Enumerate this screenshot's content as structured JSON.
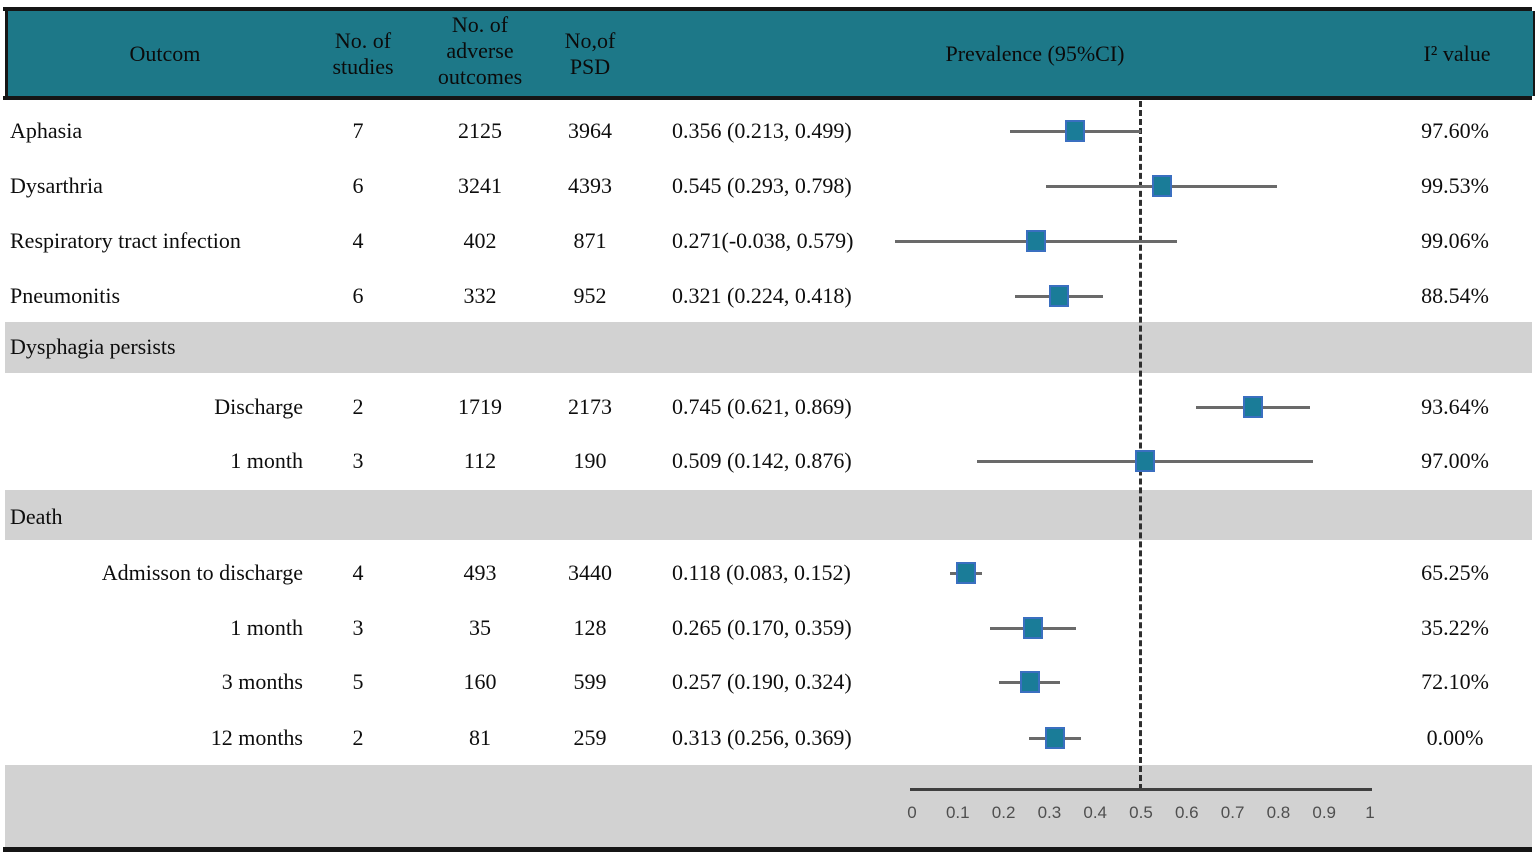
{
  "colors": {
    "header_bg": "#1d7888",
    "section_band_bg": "#d2d2d2",
    "marker_fill": "#1a7c98",
    "marker_border": "#3a6fc0",
    "ci_line": "#6a6a6a",
    "reference_line": "#2f2f2f",
    "axis_line": "#3f3f3f",
    "rule_line": "#151515"
  },
  "header": {
    "outcome": "Outcom",
    "studies": "No. of\nstudies",
    "adverse": "No. of\nadverse\noutcomes",
    "psd": "No,of\nPSD",
    "prevalence": "Prevalence  (95%CI)",
    "i2": "I² value"
  },
  "chart_data": {
    "type": "forest",
    "xlim": [
      0,
      1
    ],
    "reference_line": 0.5,
    "axis_ticks": [
      "0",
      "0.1",
      "0.2",
      "0.3",
      "0.4",
      "0.5",
      "0.6",
      "0.7",
      "0.8",
      "0.9",
      "1"
    ],
    "axis_tick_values": [
      0,
      0.1,
      0.2,
      0.3,
      0.4,
      0.5,
      0.6,
      0.7,
      0.8,
      0.9,
      1
    ],
    "legend_position": "none",
    "grid": false,
    "rows": [
      {
        "type": "data",
        "label": "Aphasia",
        "indent": false,
        "studies": "7",
        "adverse": "2125",
        "psd": "3964",
        "prevalence": "0.356 (0.213, 0.499)",
        "estimate": 0.356,
        "ci_lower": 0.213,
        "ci_upper": 0.499,
        "i2": "97.60%"
      },
      {
        "type": "data",
        "label": "Dysarthria",
        "indent": false,
        "studies": "6",
        "adverse": "3241",
        "psd": "4393",
        "prevalence": "0.545 (0.293, 0.798)",
        "estimate": 0.545,
        "ci_lower": 0.293,
        "ci_upper": 0.798,
        "i2": "99.53%"
      },
      {
        "type": "data",
        "label": "Respiratory tract infection",
        "indent": false,
        "studies": "4",
        "adverse": "402",
        "psd": "871",
        "prevalence": "0.271(-0.038, 0.579)",
        "estimate": 0.271,
        "ci_lower": -0.038,
        "ci_upper": 0.579,
        "i2": "99.06%"
      },
      {
        "type": "data",
        "label": "Pneumonitis",
        "indent": false,
        "studies": "6",
        "adverse": "332",
        "psd": "952",
        "prevalence": "0.321 (0.224, 0.418)",
        "estimate": 0.321,
        "ci_lower": 0.224,
        "ci_upper": 0.418,
        "i2": "88.54%"
      },
      {
        "type": "section",
        "label": "Dysphagia persists"
      },
      {
        "type": "data",
        "label": "Discharge",
        "indent": true,
        "studies": "2",
        "adverse": "1719",
        "psd": "2173",
        "prevalence": "0.745 (0.621, 0.869)",
        "estimate": 0.745,
        "ci_lower": 0.621,
        "ci_upper": 0.869,
        "i2": "93.64%"
      },
      {
        "type": "data",
        "label": "1 month",
        "indent": true,
        "studies": "3",
        "adverse": "112",
        "psd": "190",
        "prevalence": "0.509 (0.142, 0.876)",
        "estimate": 0.509,
        "ci_lower": 0.142,
        "ci_upper": 0.876,
        "i2": "97.00%"
      },
      {
        "type": "section",
        "label": "Death"
      },
      {
        "type": "data",
        "label": "Admisson to discharge",
        "indent": true,
        "studies": "4",
        "adverse": "493",
        "psd": "3440",
        "prevalence": "0.118 (0.083, 0.152)",
        "estimate": 0.118,
        "ci_lower": 0.083,
        "ci_upper": 0.152,
        "i2": "65.25%"
      },
      {
        "type": "data",
        "label": "1 month",
        "indent": true,
        "studies": "3",
        "adverse": "35",
        "psd": "128",
        "prevalence": "0.265 (0.170, 0.359)",
        "estimate": 0.265,
        "ci_lower": 0.17,
        "ci_upper": 0.359,
        "i2": "35.22%"
      },
      {
        "type": "data",
        "label": "3 months",
        "indent": true,
        "studies": "5",
        "adverse": "160",
        "psd": "599",
        "prevalence": "0.257 (0.190, 0.324)",
        "estimate": 0.257,
        "ci_lower": 0.19,
        "ci_upper": 0.324,
        "i2": "72.10%"
      },
      {
        "type": "data",
        "label": "12 months",
        "indent": true,
        "studies": "2",
        "adverse": "81",
        "psd": "259",
        "prevalence": "0.313 (0.256, 0.369)",
        "estimate": 0.313,
        "ci_lower": 0.256,
        "ci_upper": 0.369,
        "i2": "0.00%"
      }
    ]
  }
}
